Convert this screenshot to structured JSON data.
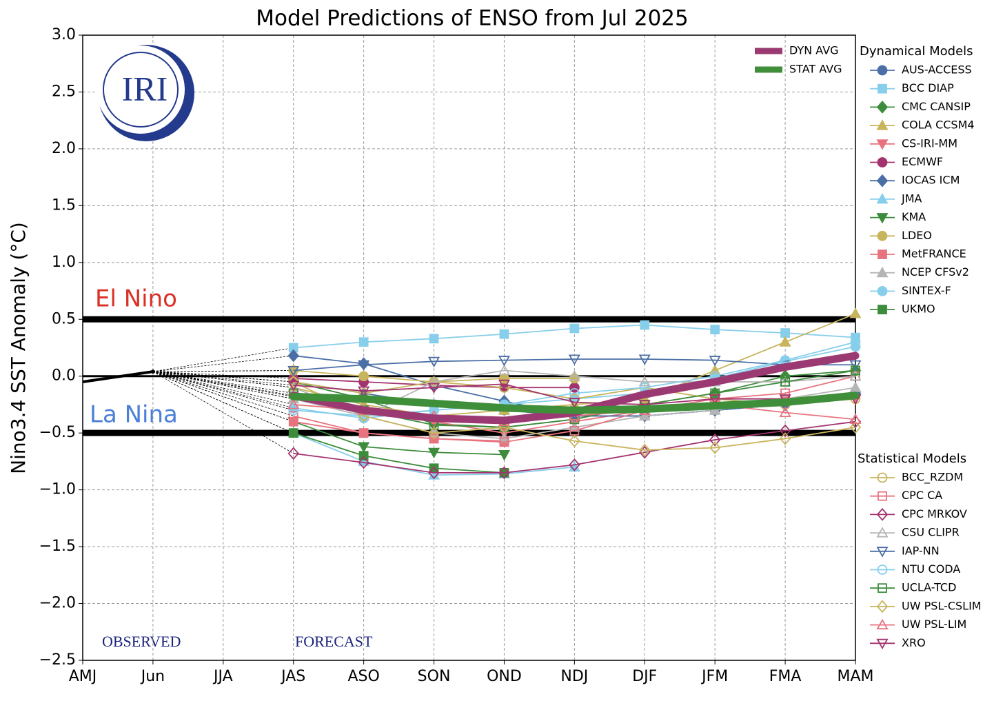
{
  "chart_data": {
    "type": "line",
    "title": "Model Predictions of ENSO from Jul 2025",
    "ylabel": "Nino3.4 SST Anomaly (°C)",
    "logo_text": "IRI",
    "categories": [
      "AMJ",
      "Jun",
      "JJA",
      "JAS",
      "ASO",
      "SON",
      "OND",
      "NDJ",
      "DJF",
      "JFM",
      "FMA",
      "MAM"
    ],
    "ylim": [
      -2.5,
      3.0
    ],
    "yticks": [
      {
        "value": -2.5,
        "label": "−2.5"
      },
      {
        "value": -2,
        "label": "−2.0"
      },
      {
        "value": -1.5,
        "label": "−1.5"
      },
      {
        "value": -1,
        "label": "−1.0"
      },
      {
        "value": -0.5,
        "label": "−0.5"
      },
      {
        "value": 0,
        "label": "0.0"
      },
      0.5,
      {
        "value": 1,
        "label": "1.0"
      },
      1.5,
      {
        "value": 2,
        "label": "2.0"
      },
      2.5,
      {
        "value": 3,
        "label": "3.0"
      }
    ],
    "grid": true,
    "reference_lines": [
      0.5,
      0,
      -0.5
    ],
    "annotations": {
      "el_nino": "El Nino",
      "la_nina": "La Nina",
      "observed": "OBSERVED",
      "forecast": "FORECAST"
    },
    "observed": {
      "color": "#000000",
      "values": [
        -0.05,
        0.04,
        null,
        null,
        null,
        null,
        null,
        null,
        null,
        null,
        null,
        null
      ]
    },
    "averages": [
      {
        "name": "DYN AVG",
        "color": "#9b3a72",
        "values": [
          null,
          null,
          null,
          -0.17,
          -0.3,
          -0.37,
          -0.39,
          -0.32,
          -0.16,
          -0.05,
          0.08,
          0.18
        ]
      },
      {
        "name": "STAT AVG",
        "color": "#3f8f3a",
        "values": [
          null,
          null,
          null,
          -0.18,
          -0.2,
          -0.24,
          -0.28,
          -0.3,
          -0.29,
          -0.26,
          -0.23,
          -0.17
        ]
      }
    ],
    "dynamical_models": {
      "title": "Dynamical Models",
      "filled": true,
      "series": [
        {
          "name": "AUS-ACCESS",
          "color": "#4c6fa8",
          "marker": "circle",
          "values": [
            null,
            null,
            null,
            -0.05,
            -0.15,
            -0.25,
            -0.3,
            -0.35,
            -0.35,
            -0.3,
            -0.25,
            -0.15
          ]
        },
        {
          "name": "BCC DIAP",
          "color": "#87ceeb",
          "marker": "square",
          "values": [
            null,
            null,
            null,
            0.25,
            0.3,
            0.33,
            0.37,
            0.42,
            0.45,
            0.41,
            0.38,
            0.34
          ]
        },
        {
          "name": "CMC CANSIP",
          "color": "#3c8c3c",
          "marker": "diamond",
          "values": [
            null,
            null,
            null,
            -0.05,
            -0.2,
            -0.42,
            -0.45,
            -0.38,
            -0.25,
            -0.15,
            0.0,
            0.05
          ]
        },
        {
          "name": "COLA CCSM4",
          "color": "#c8b45c",
          "marker": "triangle-up",
          "values": [
            null,
            null,
            null,
            -0.1,
            -0.25,
            -0.35,
            -0.3,
            -0.25,
            -0.2,
            0.05,
            0.3,
            0.55
          ]
        },
        {
          "name": "CS-IRI-MM",
          "color": "#e8737f",
          "marker": "triangle-down",
          "values": [
            null,
            null,
            null,
            -0.2,
            -0.3,
            -0.4,
            -0.5,
            -0.4,
            -0.3,
            -0.25,
            -0.2,
            -0.2
          ]
        },
        {
          "name": "ECMWF",
          "color": "#a3336f",
          "marker": "circle",
          "values": [
            null,
            null,
            null,
            -0.02,
            -0.05,
            -0.08,
            -0.1,
            -0.1,
            null,
            null,
            null,
            null
          ]
        },
        {
          "name": "IOCAS ICM",
          "color": "#4a6fa5",
          "marker": "diamond",
          "values": [
            null,
            null,
            null,
            0.18,
            0.11,
            -0.08,
            -0.22,
            -0.35,
            -0.35,
            -0.3,
            -0.25,
            -0.15
          ]
        },
        {
          "name": "JMA",
          "color": "#87ceeb",
          "marker": "triangle-up",
          "values": [
            null,
            null,
            null,
            -0.5,
            -0.75,
            -0.87,
            -0.86,
            -0.8,
            null,
            null,
            null,
            null
          ]
        },
        {
          "name": "KMA",
          "color": "#3c8c3c",
          "marker": "triangle-down",
          "values": [
            null,
            null,
            null,
            -0.4,
            -0.62,
            -0.67,
            -0.69,
            null,
            null,
            null,
            null,
            null
          ]
        },
        {
          "name": "LDEO",
          "color": "#c8b45c",
          "marker": "circle",
          "values": [
            null,
            null,
            null,
            0.05,
            0.0,
            -0.05,
            -0.02,
            -0.02,
            null,
            null,
            null,
            null
          ]
        },
        {
          "name": "MetFRANCE",
          "color": "#e8737f",
          "marker": "square",
          "values": [
            null,
            null,
            null,
            -0.4,
            -0.5,
            -0.55,
            -0.57,
            null,
            null,
            null,
            null,
            null
          ]
        },
        {
          "name": "NCEP CFSv2",
          "color": "#b5b5b5",
          "marker": "triangle-up",
          "values": [
            null,
            null,
            null,
            -0.2,
            -0.35,
            -0.5,
            -0.55,
            -0.45,
            -0.35,
            -0.3,
            -0.2,
            -0.1
          ]
        },
        {
          "name": "SINTEX-F",
          "color": "#87ceeb",
          "marker": "circle",
          "values": [
            null,
            null,
            null,
            -0.28,
            -0.37,
            -0.3,
            -0.25,
            -0.2,
            -0.15,
            -0.02,
            0.13,
            0.26
          ]
        },
        {
          "name": "UKMO",
          "color": "#3c8c3c",
          "marker": "square",
          "values": [
            null,
            null,
            null,
            -0.5,
            -0.7,
            -0.81,
            -0.85,
            null,
            null,
            null,
            null,
            null
          ]
        }
      ]
    },
    "statistical_models": {
      "title": "Statistical Models",
      "filled": false,
      "series": [
        {
          "name": "BCC_RZDM",
          "color": "#c8b45c",
          "marker": "circle",
          "values": [
            null,
            null,
            null,
            -0.05,
            -0.15,
            -0.05,
            -0.1,
            -0.2,
            -0.1,
            -0.2,
            -0.25,
            -0.2
          ]
        },
        {
          "name": "CPC CA",
          "color": "#e8737f",
          "marker": "square",
          "values": [
            null,
            null,
            null,
            -0.35,
            -0.5,
            -0.55,
            -0.58,
            -0.48,
            -0.3,
            -0.2,
            -0.15,
            0.0
          ]
        },
        {
          "name": "CPC MRKOV",
          "color": "#a3336f",
          "marker": "diamond",
          "values": [
            null,
            null,
            null,
            -0.68,
            -0.76,
            -0.85,
            -0.85,
            -0.78,
            -0.67,
            -0.56,
            -0.48,
            -0.4
          ]
        },
        {
          "name": "CSU CLIPR",
          "color": "#b5b5b5",
          "marker": "triangle-up",
          "values": [
            null,
            null,
            null,
            -0.1,
            -0.35,
            -0.05,
            0.05,
            0.0,
            -0.05,
            -0.05,
            -0.05,
            0.0
          ]
        },
        {
          "name": "IAP-NN",
          "color": "#4a6fa5",
          "marker": "triangle-down",
          "values": [
            null,
            null,
            null,
            0.05,
            0.1,
            0.13,
            0.14,
            0.15,
            0.15,
            0.14,
            0.1,
            0.1
          ]
        },
        {
          "name": "NTU CODA",
          "color": "#87ceeb",
          "marker": "circle",
          "values": [
            null,
            null,
            null,
            -0.3,
            -0.35,
            -0.3,
            -0.25,
            -0.15,
            -0.1,
            0.0,
            0.14,
            0.3
          ]
        },
        {
          "name": "UCLA-TCD",
          "color": "#3c8c3c",
          "marker": "square",
          "values": [
            null,
            null,
            null,
            -0.15,
            -0.3,
            -0.43,
            -0.45,
            -0.38,
            -0.25,
            -0.15,
            -0.05,
            0.05
          ]
        },
        {
          "name": "UW PSL-CSLIM",
          "color": "#c8b45c",
          "marker": "diamond",
          "values": [
            null,
            null,
            null,
            -0.05,
            -0.35,
            -0.5,
            -0.45,
            -0.57,
            -0.65,
            -0.63,
            -0.55,
            -0.45
          ]
        },
        {
          "name": "UW PSL-LIM",
          "color": "#e8737f",
          "marker": "triangle-up",
          "values": [
            null,
            null,
            null,
            -0.25,
            -0.3,
            -0.35,
            -0.4,
            -0.35,
            -0.3,
            -0.25,
            -0.32,
            -0.38
          ]
        },
        {
          "name": "XRO",
          "color": "#a3336f",
          "marker": "triangle-down",
          "values": [
            null,
            null,
            null,
            -0.08,
            -0.13,
            -0.1,
            -0.07,
            -0.23,
            -0.25,
            -0.2,
            -0.2,
            -0.2
          ]
        }
      ]
    }
  }
}
